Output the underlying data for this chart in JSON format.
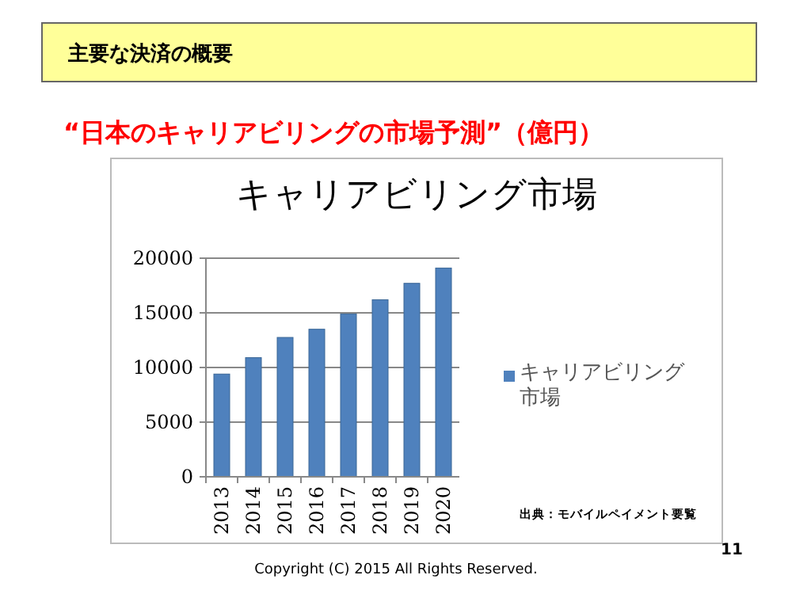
{
  "chart_data": {
    "type": "bar",
    "title": "キャリアビリング市場",
    "subtitle": "主要な決済の概要",
    "annotations": [
      "“日本のキャリアビリングの市場予測”（億円）",
      "出典：モバイルペイメント要覧",
      "11",
      "Copyright (C) 2015 All Rights Reserved."
    ],
    "categories": [
      "2013",
      "2014",
      "2015",
      "2016",
      "2017",
      "2018",
      "2019",
      "2020"
    ],
    "series": [
      {
        "name": "キャリアビリング市場",
        "color": "#4f81bd",
        "values": [
          9400,
          10900,
          12750,
          13500,
          14900,
          16200,
          17700,
          19100
        ]
      }
    ],
    "ylim": [
      0,
      20000
    ],
    "yticks": [
      0,
      5000,
      10000,
      15000,
      20000
    ],
    "grid": "y",
    "legend": "right"
  }
}
